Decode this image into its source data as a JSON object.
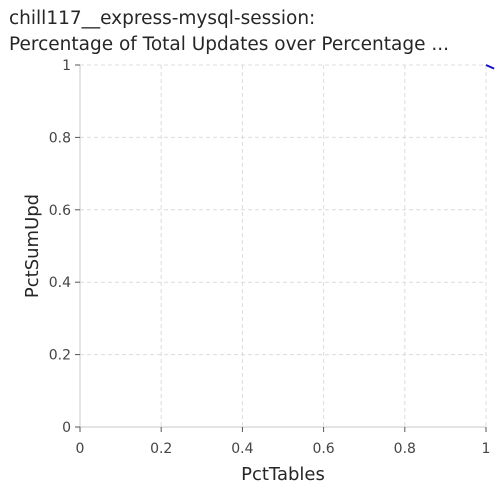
{
  "chart_data": {
    "type": "line",
    "title_line1": "chill117__express-mysql-session:",
    "title_line2": "Percentage of Total Updates over Percentage ...",
    "xlabel": "PctTables",
    "ylabel": "PctSumUpd",
    "xlim": [
      0,
      1
    ],
    "ylim": [
      0,
      1
    ],
    "x_ticks": [
      0,
      0.2,
      0.4,
      0.6,
      0.8,
      1
    ],
    "x_tick_labels": [
      "0",
      "0.2",
      "0.4",
      "0.6",
      "0.8",
      "1"
    ],
    "y_ticks": [
      0,
      0.2,
      0.4,
      0.6,
      0.8,
      1
    ],
    "y_tick_labels": [
      "0",
      "0.2",
      "0.4",
      "0.6",
      "0.8",
      "1"
    ],
    "grid": true,
    "series": [
      {
        "color": "#1010c8",
        "x": [
          1.0,
          1.02
        ],
        "y": [
          1.0,
          0.99
        ]
      }
    ]
  }
}
